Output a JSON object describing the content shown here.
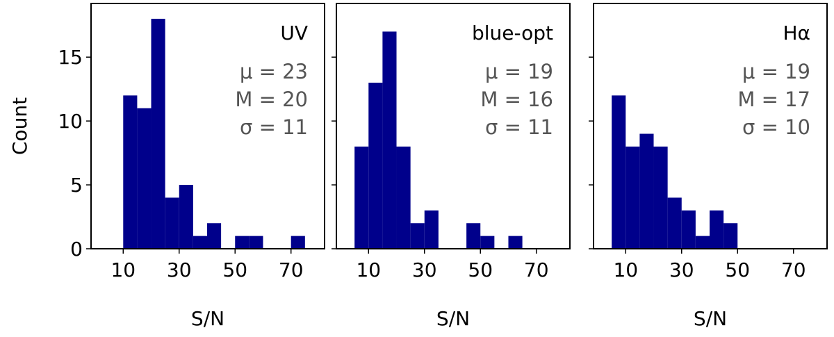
{
  "chart_data": [
    {
      "type": "histogram",
      "label": "UV",
      "stats": [
        "μ = 23",
        "M = 20",
        "σ = 11"
      ],
      "xlabel": "S/N",
      "ylabel": "Count",
      "bins": [
        10,
        15,
        20,
        25,
        30,
        35,
        40,
        45,
        50,
        55,
        60,
        65,
        70,
        75
      ],
      "values": [
        12,
        11,
        18,
        4,
        5,
        1,
        2,
        0,
        1,
        1,
        0,
        0,
        1
      ],
      "color": "#00008b",
      "xlim": [
        -1.5,
        82
      ],
      "xticks": [
        10,
        30,
        50,
        70
      ],
      "ylim": [
        0,
        19.2
      ],
      "yticks": [
        0,
        5,
        10,
        15
      ]
    },
    {
      "type": "histogram",
      "label": "blue-opt",
      "stats": [
        "μ = 19",
        "M = 16",
        "σ = 11"
      ],
      "xlabel": "S/N",
      "bins": [
        5,
        10,
        15,
        20,
        25,
        30,
        35,
        40,
        45,
        50,
        55,
        60,
        65
      ],
      "values": [
        8,
        13,
        17,
        8,
        2,
        3,
        0,
        0,
        2,
        1,
        0,
        1
      ],
      "color": "#00008b",
      "xlim": [
        -1.5,
        82
      ],
      "xticks": [
        10,
        30,
        50,
        70
      ],
      "ylim": [
        0,
        19.2
      ],
      "yticks": [
        0,
        5,
        10,
        15
      ]
    },
    {
      "type": "histogram",
      "label": "Hα",
      "stats": [
        "μ = 19",
        "M = 17",
        "σ = 10"
      ],
      "xlabel": "S/N",
      "bins": [
        5,
        10,
        15,
        20,
        25,
        30,
        35,
        40,
        45,
        50
      ],
      "values": [
        12,
        8,
        9,
        8,
        4,
        3,
        1,
        3,
        2
      ],
      "color": "#00008b",
      "xlim": [
        -1.5,
        82
      ],
      "xticks": [
        10,
        30,
        50,
        70
      ],
      "ylim": [
        0,
        19.2
      ],
      "yticks": [
        0,
        5,
        10,
        15
      ]
    }
  ]
}
